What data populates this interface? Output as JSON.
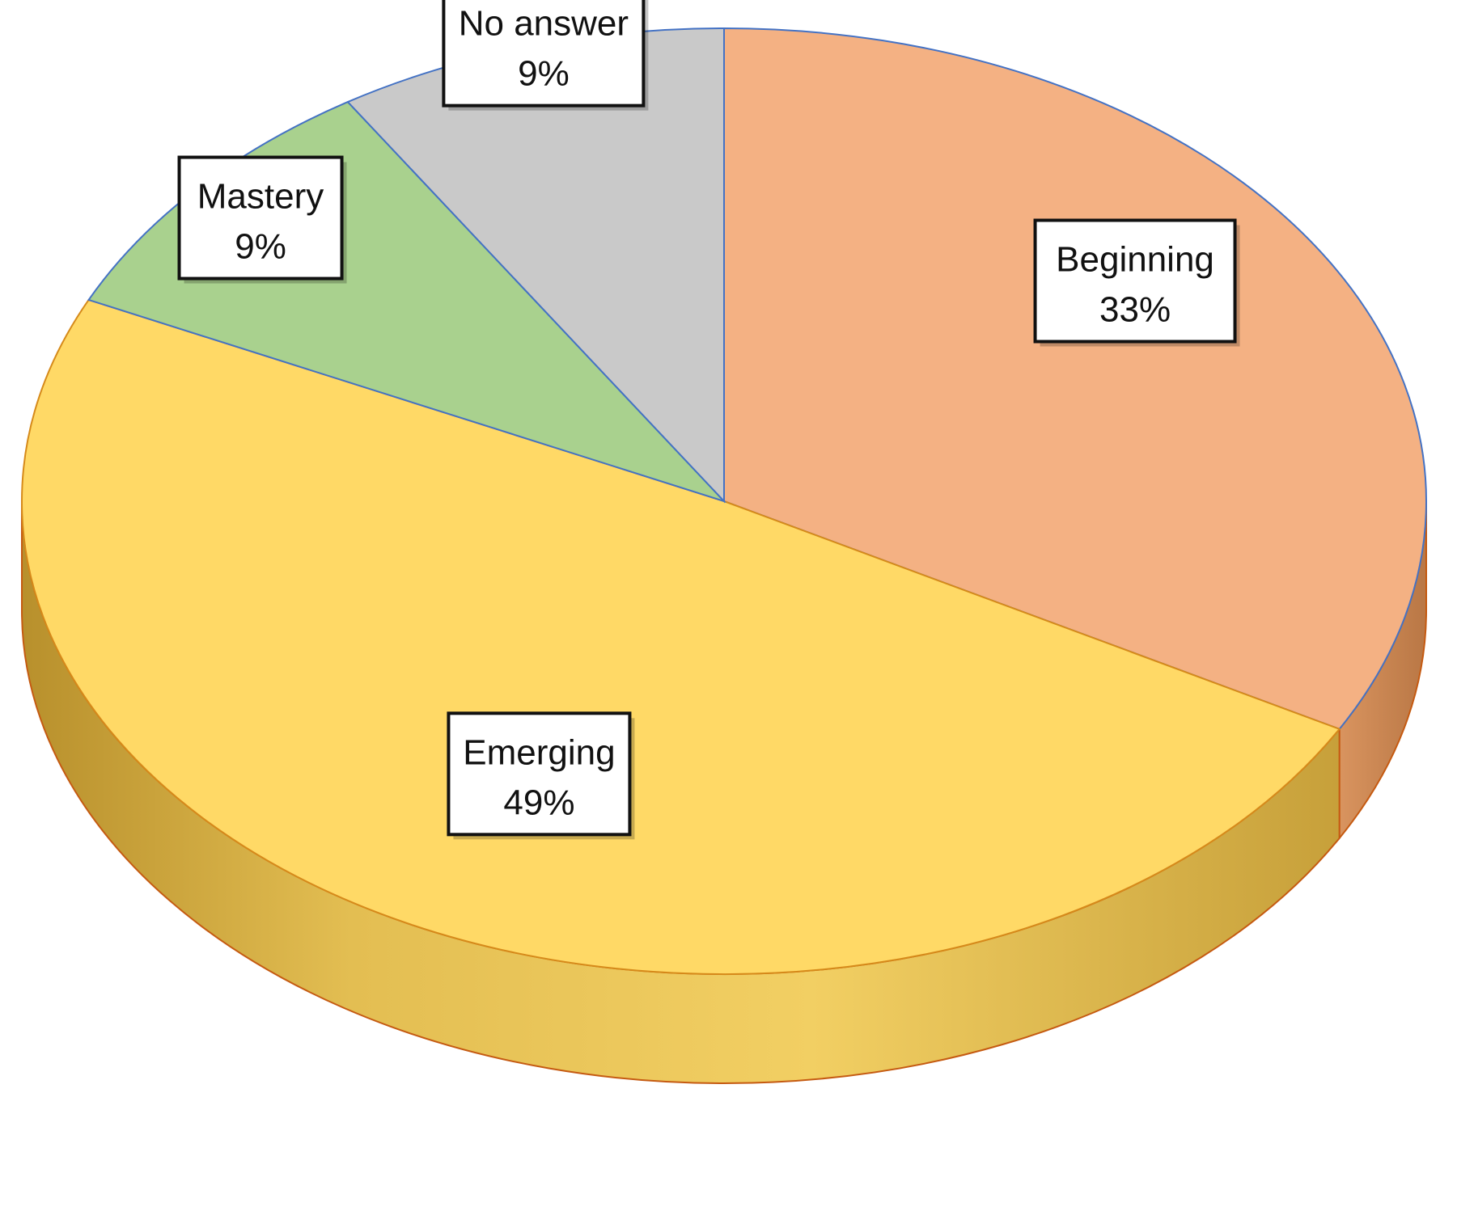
{
  "chart_data": {
    "type": "pie",
    "style": "3d-tilted",
    "slices": [
      {
        "label": "Beginning",
        "value": 33,
        "display": "33%",
        "color": "#F4B183"
      },
      {
        "label": "Emerging",
        "value": 49,
        "display": "49%",
        "color": "#FFD966"
      },
      {
        "label": "Mastery",
        "value": 9,
        "display": "9%",
        "color": "#A9D18E"
      },
      {
        "label": "No answer",
        "value": 9,
        "display": "9%",
        "color": "#C9C9C9"
      }
    ],
    "start_angle_deg": 0,
    "direction": "clockwise",
    "legend": "none",
    "data_labels": "boxed, inside slices"
  }
}
